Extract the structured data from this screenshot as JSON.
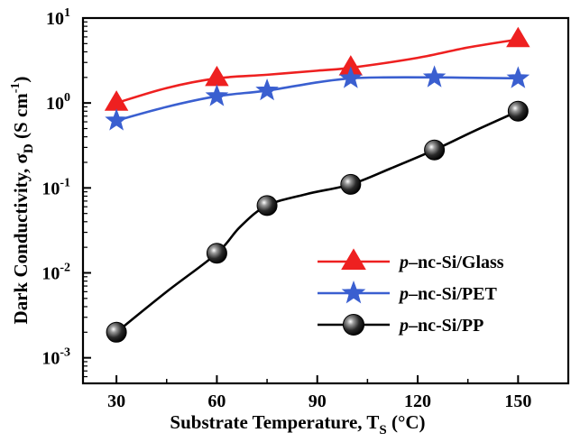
{
  "chart_data": {
    "type": "line",
    "title": "",
    "xlabel": {
      "main": "Substrate Temperature, T",
      "sub": "S",
      "unit": " (°C)"
    },
    "ylabel": {
      "main": "Dark Conductivity, σ",
      "sub": "D",
      "unit_open": " (S cm",
      "unit_sup": "-1",
      "unit_close": ")"
    },
    "xlim": [
      20,
      165
    ],
    "ylim": [
      0.0005,
      10
    ],
    "yscale": "log",
    "xticks": [
      30,
      60,
      90,
      120,
      150
    ],
    "yticks": [
      {
        "value": 0.001,
        "base": "10",
        "exp": "-3"
      },
      {
        "value": 0.01,
        "base": "10",
        "exp": "-2"
      },
      {
        "value": 0.1,
        "base": "10",
        "exp": "-1"
      },
      {
        "value": 1,
        "base": "10",
        "exp": "0"
      },
      {
        "value": 10,
        "base": "10",
        "exp": "1"
      }
    ],
    "grid": false,
    "legend_position": "bottom-right",
    "series": [
      {
        "name": "Glass",
        "label_italic": "p",
        "label_rest": "–nc-Si/Glass",
        "marker": "triangle",
        "color": "#ee2020",
        "line_color": "#ee2020",
        "x": [
          30,
          60,
          100,
          150
        ],
        "y": [
          1.0,
          1.95,
          2.6,
          5.6
        ],
        "curve_x": [
          30,
          45,
          60,
          75,
          90,
          100,
          120,
          135,
          150
        ],
        "curve_y": [
          1.0,
          1.5,
          1.95,
          2.15,
          2.4,
          2.6,
          3.4,
          4.5,
          5.6
        ]
      },
      {
        "name": "PET",
        "label_italic": "p",
        "label_rest": "–nc-Si/PET",
        "marker": "star",
        "color": "#3a5fd0",
        "line_color": "#3a5fd0",
        "x": [
          30,
          60,
          75,
          100,
          125,
          150
        ],
        "y": [
          0.62,
          1.2,
          1.4,
          1.95,
          2.0,
          1.95
        ],
        "curve_x": [
          30,
          45,
          60,
          75,
          90,
          100,
          110,
          125,
          140,
          150
        ],
        "curve_y": [
          0.62,
          0.9,
          1.2,
          1.4,
          1.75,
          1.95,
          2.0,
          2.0,
          1.97,
          1.95
        ]
      },
      {
        "name": "PP",
        "label_italic": "p",
        "label_rest": "–nc-Si/PP",
        "marker": "sphere",
        "color": "#111111",
        "line_color": "#000000",
        "x": [
          30,
          60,
          75,
          100,
          125,
          150
        ],
        "y": [
          0.002,
          0.017,
          0.062,
          0.11,
          0.28,
          0.8
        ],
        "curve_x": [
          30,
          45,
          60,
          67,
          75,
          87,
          100,
          112,
          125,
          137,
          150
        ],
        "curve_y": [
          0.002,
          0.006,
          0.017,
          0.035,
          0.062,
          0.085,
          0.11,
          0.17,
          0.28,
          0.47,
          0.8
        ]
      }
    ]
  }
}
